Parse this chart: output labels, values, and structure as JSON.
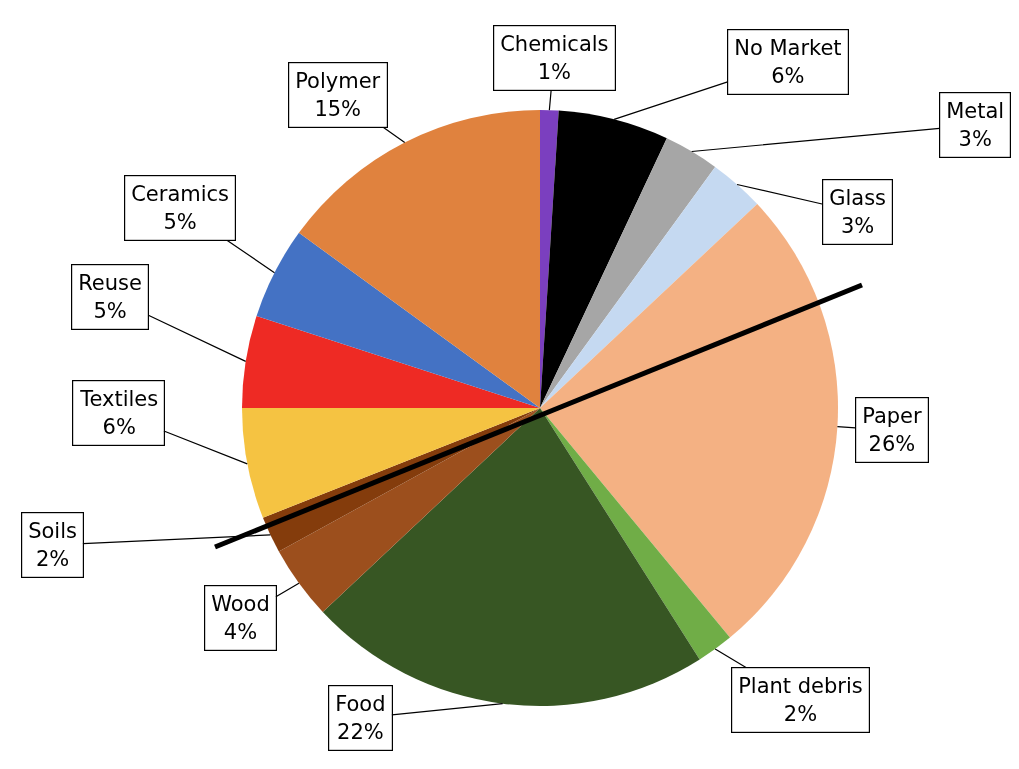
{
  "chart_data": {
    "type": "pie",
    "categories": [
      "Chemicals",
      "No Market",
      "Metal",
      "Glass",
      "Paper",
      "Plant debris",
      "Food",
      "Wood",
      "Soils",
      "Textiles",
      "Reuse",
      "Ceramics",
      "Polymer"
    ],
    "values": [
      1,
      6,
      3,
      3,
      26,
      2,
      22,
      4,
      2,
      6,
      5,
      5,
      15
    ],
    "value_labels": [
      "1%",
      "6%",
      "3%",
      "3%",
      "26%",
      "2%",
      "22%",
      "4%",
      "2%",
      "6%",
      "5%",
      "5%",
      "15%"
    ],
    "colors": [
      "#7b3fbf",
      "#000000",
      "#a6a6a6",
      "#c5d9f1",
      "#f4b183",
      "#70ad47",
      "#375623",
      "#9c4f1d",
      "#843c0c",
      "#f5c342",
      "#ee2a24",
      "#4472c4",
      "#e0823e"
    ],
    "legend": false
  }
}
